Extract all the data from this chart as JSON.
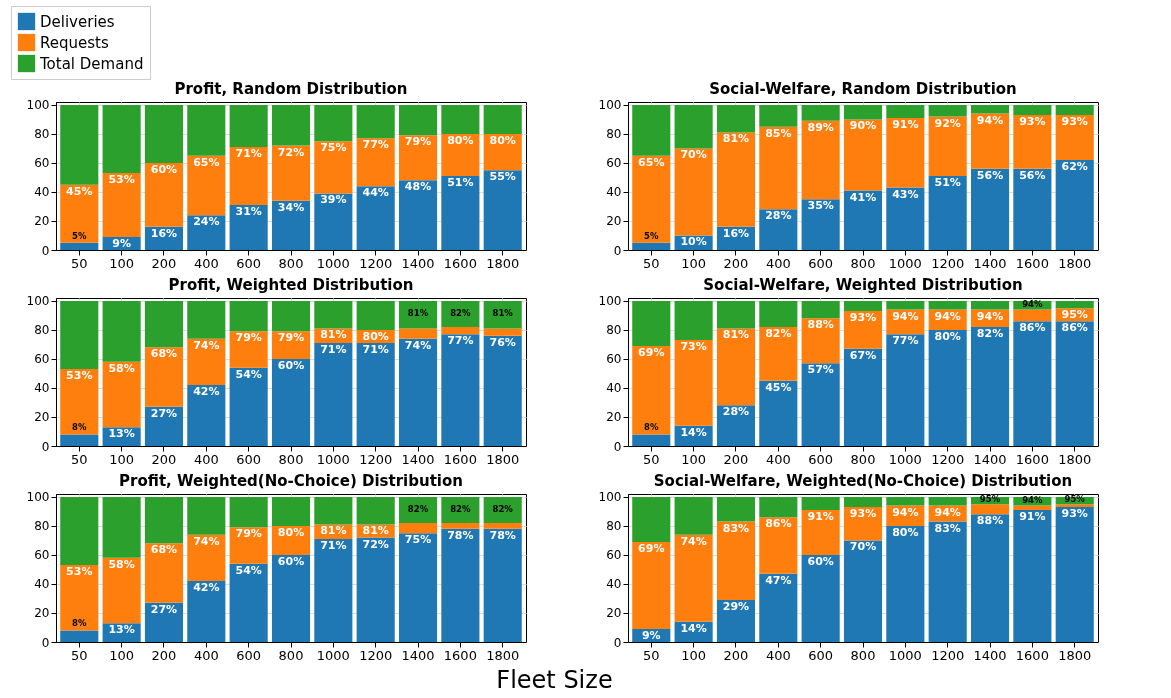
{
  "chart_data": [
    {
      "type": "bar",
      "stacked": true,
      "title": "Profit, Random Distribution",
      "categories": [
        "50",
        "100",
        "200",
        "400",
        "600",
        "800",
        "1000",
        "1200",
        "1400",
        "1600",
        "1800"
      ],
      "ylim": [
        0,
        102
      ],
      "yticks": [
        0,
        20,
        40,
        60,
        80,
        100
      ],
      "grid": true,
      "legend": "top left",
      "series": [
        {
          "name": "Deliveries",
          "color": "#1f77b4",
          "values": [
            5,
            9,
            16,
            24,
            31,
            34,
            39,
            44,
            48,
            51,
            55
          ],
          "value_labels": [
            "5%",
            "9%",
            "16%",
            "24%",
            "31%",
            "34%",
            "39%",
            "44%",
            "48%",
            "51%",
            "55%"
          ]
        },
        {
          "name": "Requests",
          "color": "#ff7f0e",
          "values": [
            40,
            44,
            44,
            41,
            40,
            38,
            36,
            33,
            31,
            29,
            25
          ]
        },
        {
          "name": "Total Demand",
          "color": "#2ca02c",
          "values": [
            55,
            47,
            40,
            35,
            29,
            28,
            25,
            23,
            21,
            20,
            20
          ]
        }
      ],
      "annotations": [
        {
          "text": "45%",
          "x": "50",
          "y": 45
        },
        {
          "text": "53%",
          "x": "100",
          "y": 53
        },
        {
          "text": "60%",
          "x": "200",
          "y": 60
        },
        {
          "text": "65%",
          "x": "400",
          "y": 65
        },
        {
          "text": "71%",
          "x": "600",
          "y": 71
        },
        {
          "text": "72%",
          "x": "800",
          "y": 72
        },
        {
          "text": "75%",
          "x": "1000",
          "y": 75
        },
        {
          "text": "77%",
          "x": "1200",
          "y": 77
        },
        {
          "text": "79%",
          "x": "1400",
          "y": 79
        },
        {
          "text": "80%",
          "x": "1600",
          "y": 80
        },
        {
          "text": "80%",
          "x": "1800",
          "y": 80
        }
      ]
    },
    {
      "type": "bar",
      "stacked": true,
      "title": "Social-Welfare, Random Distribution",
      "categories": [
        "50",
        "100",
        "200",
        "400",
        "600",
        "800",
        "1000",
        "1200",
        "1400",
        "1600",
        "1800"
      ],
      "ylim": [
        0,
        102
      ],
      "yticks": [
        0,
        20,
        40,
        60,
        80,
        100
      ],
      "grid": true,
      "series": [
        {
          "name": "Deliveries",
          "color": "#1f77b4",
          "values": [
            5,
            10,
            16,
            28,
            35,
            41,
            43,
            51,
            56,
            56,
            62
          ],
          "value_labels": [
            "5%",
            "10%",
            "16%",
            "28%",
            "35%",
            "41%",
            "43%",
            "51%",
            "56%",
            "56%",
            "62%"
          ]
        },
        {
          "name": "Requests",
          "color": "#ff7f0e",
          "values": [
            60,
            60,
            65,
            57,
            54,
            49,
            48,
            41,
            38,
            37,
            31
          ]
        },
        {
          "name": "Total Demand",
          "color": "#2ca02c",
          "values": [
            35,
            30,
            19,
            15,
            11,
            10,
            9,
            8,
            6,
            7,
            7
          ]
        }
      ],
      "annotations": [
        {
          "text": "65%",
          "x": "50",
          "y": 65
        },
        {
          "text": "70%",
          "x": "100",
          "y": 70
        },
        {
          "text": "81%",
          "x": "200",
          "y": 81
        },
        {
          "text": "85%",
          "x": "400",
          "y": 85
        },
        {
          "text": "89%",
          "x": "600",
          "y": 89
        },
        {
          "text": "90%",
          "x": "800",
          "y": 90
        },
        {
          "text": "91%",
          "x": "1000",
          "y": 91
        },
        {
          "text": "92%",
          "x": "1200",
          "y": 92
        },
        {
          "text": "94%",
          "x": "1400",
          "y": 94
        },
        {
          "text": "93%",
          "x": "1600",
          "y": 93
        },
        {
          "text": "93%",
          "x": "1800",
          "y": 93
        }
      ]
    },
    {
      "type": "bar",
      "stacked": true,
      "title": "Profit, Weighted Distribution",
      "categories": [
        "50",
        "100",
        "200",
        "400",
        "600",
        "800",
        "1000",
        "1200",
        "1400",
        "1600",
        "1800"
      ],
      "ylim": [
        0,
        102
      ],
      "yticks": [
        0,
        20,
        40,
        60,
        80,
        100
      ],
      "grid": true,
      "series": [
        {
          "name": "Deliveries",
          "color": "#1f77b4",
          "values": [
            8,
            13,
            27,
            42,
            54,
            60,
            71,
            71,
            74,
            77,
            76
          ],
          "value_labels": [
            "8%",
            "13%",
            "27%",
            "42%",
            "54%",
            "60%",
            "71%",
            "71%",
            "74%",
            "77%",
            "76%"
          ]
        },
        {
          "name": "Requests",
          "color": "#ff7f0e",
          "values": [
            45,
            45,
            41,
            32,
            25,
            19,
            10,
            9,
            7,
            5,
            5
          ]
        },
        {
          "name": "Total Demand",
          "color": "#2ca02c",
          "values": [
            47,
            42,
            32,
            26,
            21,
            21,
            19,
            20,
            19,
            18,
            19
          ]
        }
      ],
      "annotations": [
        {
          "text": "53%",
          "x": "50",
          "y": 53
        },
        {
          "text": "58%",
          "x": "100",
          "y": 58
        },
        {
          "text": "68%",
          "x": "200",
          "y": 68
        },
        {
          "text": "74%",
          "x": "400",
          "y": 74
        },
        {
          "text": "79%",
          "x": "600",
          "y": 79
        },
        {
          "text": "79%",
          "x": "800",
          "y": 79
        },
        {
          "text": "81%",
          "x": "1000",
          "y": 81
        },
        {
          "text": "80%",
          "x": "1200",
          "y": 80
        },
        {
          "text": "81%",
          "x": "1400",
          "y": 81
        },
        {
          "text": "82%",
          "x": "1600",
          "y": 82
        },
        {
          "text": "81%",
          "x": "1800",
          "y": 81
        }
      ]
    },
    {
      "type": "bar",
      "stacked": true,
      "title": "Social-Welfare, Weighted Distribution",
      "categories": [
        "50",
        "100",
        "200",
        "400",
        "600",
        "800",
        "1000",
        "1200",
        "1400",
        "1600",
        "1800"
      ],
      "ylim": [
        0,
        102
      ],
      "yticks": [
        0,
        20,
        40,
        60,
        80,
        100
      ],
      "grid": true,
      "series": [
        {
          "name": "Deliveries",
          "color": "#1f77b4",
          "values": [
            8,
            14,
            28,
            45,
            57,
            67,
            77,
            80,
            82,
            86,
            86
          ],
          "value_labels": [
            "8%",
            "14%",
            "28%",
            "45%",
            "57%",
            "67%",
            "77%",
            "80%",
            "82%",
            "86%",
            "86%"
          ]
        },
        {
          "name": "Requests",
          "color": "#ff7f0e",
          "values": [
            61,
            59,
            53,
            37,
            31,
            26,
            17,
            14,
            12,
            8,
            9
          ]
        },
        {
          "name": "Total Demand",
          "color": "#2ca02c",
          "values": [
            31,
            27,
            19,
            18,
            12,
            7,
            6,
            6,
            6,
            6,
            5
          ]
        }
      ],
      "annotations": [
        {
          "text": "69%",
          "x": "50",
          "y": 69
        },
        {
          "text": "73%",
          "x": "100",
          "y": 73
        },
        {
          "text": "81%",
          "x": "200",
          "y": 81
        },
        {
          "text": "82%",
          "x": "400",
          "y": 82
        },
        {
          "text": "88%",
          "x": "600",
          "y": 88
        },
        {
          "text": "93%",
          "x": "800",
          "y": 93
        },
        {
          "text": "94%",
          "x": "1000",
          "y": 94
        },
        {
          "text": "94%",
          "x": "1200",
          "y": 94
        },
        {
          "text": "94%",
          "x": "1400",
          "y": 94
        },
        {
          "text": "94%",
          "x": "1600",
          "y": 94
        },
        {
          "text": "95%",
          "x": "1800",
          "y": 95
        }
      ]
    },
    {
      "type": "bar",
      "stacked": true,
      "title": "Profit, Weighted(No-Choice) Distribution",
      "categories": [
        "50",
        "100",
        "200",
        "400",
        "600",
        "800",
        "1000",
        "1200",
        "1400",
        "1600",
        "1800"
      ],
      "ylim": [
        0,
        102
      ],
      "yticks": [
        0,
        20,
        40,
        60,
        80,
        100
      ],
      "grid": true,
      "xlabel": "Fleet Size",
      "series": [
        {
          "name": "Deliveries",
          "color": "#1f77b4",
          "values": [
            8,
            13,
            27,
            42,
            54,
            60,
            71,
            72,
            75,
            78,
            78
          ],
          "value_labels": [
            "8%",
            "13%",
            "27%",
            "42%",
            "54%",
            "60%",
            "71%",
            "72%",
            "75%",
            "78%",
            "78%"
          ]
        },
        {
          "name": "Requests",
          "color": "#ff7f0e",
          "values": [
            45,
            45,
            41,
            32,
            25,
            20,
            10,
            9,
            7,
            4,
            4
          ]
        },
        {
          "name": "Total Demand",
          "color": "#2ca02c",
          "values": [
            47,
            42,
            32,
            26,
            21,
            20,
            19,
            19,
            18,
            18,
            18
          ]
        }
      ],
      "annotations": [
        {
          "text": "53%",
          "x": "50",
          "y": 53
        },
        {
          "text": "58%",
          "x": "100",
          "y": 58
        },
        {
          "text": "68%",
          "x": "200",
          "y": 68
        },
        {
          "text": "74%",
          "x": "400",
          "y": 74
        },
        {
          "text": "79%",
          "x": "600",
          "y": 79
        },
        {
          "text": "80%",
          "x": "800",
          "y": 80
        },
        {
          "text": "81%",
          "x": "1000",
          "y": 81
        },
        {
          "text": "81%",
          "x": "1200",
          "y": 81
        },
        {
          "text": "82%",
          "x": "1400",
          "y": 82
        },
        {
          "text": "82%",
          "x": "1600",
          "y": 82
        },
        {
          "text": "82%",
          "x": "1800",
          "y": 82
        }
      ]
    },
    {
      "type": "bar",
      "stacked": true,
      "title": "Social-Welfare, Weighted(No-Choice) Distribution",
      "categories": [
        "50",
        "100",
        "200",
        "400",
        "600",
        "800",
        "1000",
        "1200",
        "1400",
        "1600",
        "1800"
      ],
      "ylim": [
        0,
        102
      ],
      "yticks": [
        0,
        20,
        40,
        60,
        80,
        100
      ],
      "grid": true,
      "series": [
        {
          "name": "Deliveries",
          "color": "#1f77b4",
          "values": [
            9,
            14,
            29,
            47,
            60,
            70,
            80,
            83,
            88,
            91,
            93
          ],
          "value_labels": [
            "9%",
            "14%",
            "29%",
            "47%",
            "60%",
            "70%",
            "80%",
            "83%",
            "88%",
            "91%",
            "93%"
          ]
        },
        {
          "name": "Requests",
          "color": "#ff7f0e",
          "values": [
            60,
            60,
            54,
            39,
            31,
            23,
            14,
            11,
            7,
            3,
            2
          ]
        },
        {
          "name": "Total Demand",
          "color": "#2ca02c",
          "values": [
            31,
            26,
            17,
            14,
            9,
            7,
            6,
            6,
            5,
            6,
            5
          ]
        }
      ],
      "annotations": [
        {
          "text": "69%",
          "x": "50",
          "y": 69
        },
        {
          "text": "74%",
          "x": "100",
          "y": 74
        },
        {
          "text": "83%",
          "x": "200",
          "y": 83
        },
        {
          "text": "86%",
          "x": "400",
          "y": 86
        },
        {
          "text": "91%",
          "x": "600",
          "y": 91
        },
        {
          "text": "93%",
          "x": "800",
          "y": 93
        },
        {
          "text": "94%",
          "x": "1000",
          "y": 94
        },
        {
          "text": "94%",
          "x": "1200",
          "y": 94
        },
        {
          "text": "95%",
          "x": "1400",
          "y": 95
        },
        {
          "text": "94%",
          "x": "1600",
          "y": 94
        },
        {
          "text": "95%",
          "x": "1800",
          "y": 95
        }
      ]
    }
  ]
}
